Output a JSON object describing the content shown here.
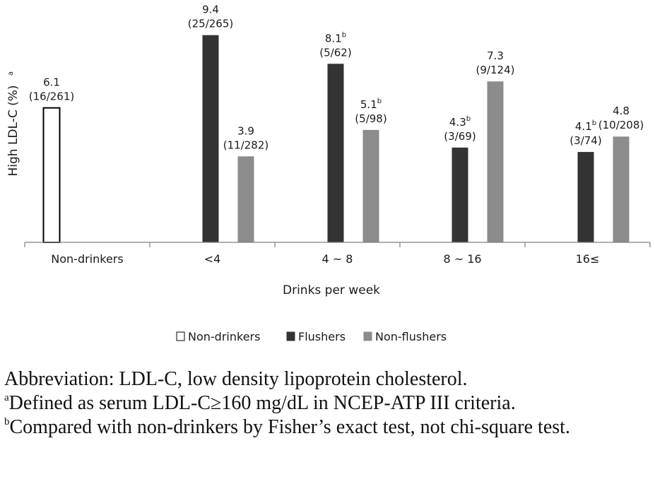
{
  "chart_data": {
    "type": "bar",
    "ylabel": "High LDL-C (%)",
    "ylabel_footnote": "a",
    "xlabel": "Drinks per week",
    "ylim": [
      0,
      10
    ],
    "grid": false,
    "legend_position": "bottom-center",
    "categories": [
      "Non-drinkers",
      "<4",
      "4 ~ 8",
      "8 ~ 16",
      "16≤"
    ],
    "series": [
      {
        "name": "Non-drinkers",
        "color": "#ffffff",
        "stroke": "#000000",
        "values": [
          6.1,
          null,
          null,
          null,
          null
        ],
        "labels": [
          "6.1",
          null,
          null,
          null,
          null
        ],
        "sup": [
          "",
          null,
          null,
          null,
          null
        ],
        "counts": [
          "(16/261)",
          null,
          null,
          null,
          null
        ]
      },
      {
        "name": "Flushers",
        "color": "#333333",
        "stroke": "#333333",
        "values": [
          null,
          9.4,
          8.1,
          4.3,
          4.1
        ],
        "labels": [
          null,
          "9.4",
          "8.1",
          "4.3",
          "4.1"
        ],
        "sup": [
          null,
          "",
          "b",
          "b",
          "b"
        ],
        "counts": [
          null,
          "(25/265)",
          "(5/62)",
          "(3/69)",
          "(3/74)"
        ]
      },
      {
        "name": "Non-flushers",
        "color": "#8c8c8c",
        "stroke": "#8c8c8c",
        "values": [
          null,
          3.9,
          5.1,
          7.3,
          4.8
        ],
        "labels": [
          null,
          "3.9",
          "5.1",
          "7.3",
          "4.8"
        ],
        "sup": [
          null,
          "",
          "b",
          "",
          ""
        ],
        "counts": [
          null,
          "(11/282)",
          "(5/98)",
          "(9/124)",
          "(10/208)"
        ]
      }
    ]
  },
  "footnotes": {
    "abbreviation": "Abbreviation: LDL-C, low density lipoprotein cholesterol.",
    "a_mark": "a",
    "a_text": "Defined as serum LDL-C≥160 mg/dL in NCEP-ATP III criteria.",
    "b_mark": "b",
    "b_text": "Compared with non-drinkers by Fisher’s exact test, not chi-square test."
  }
}
